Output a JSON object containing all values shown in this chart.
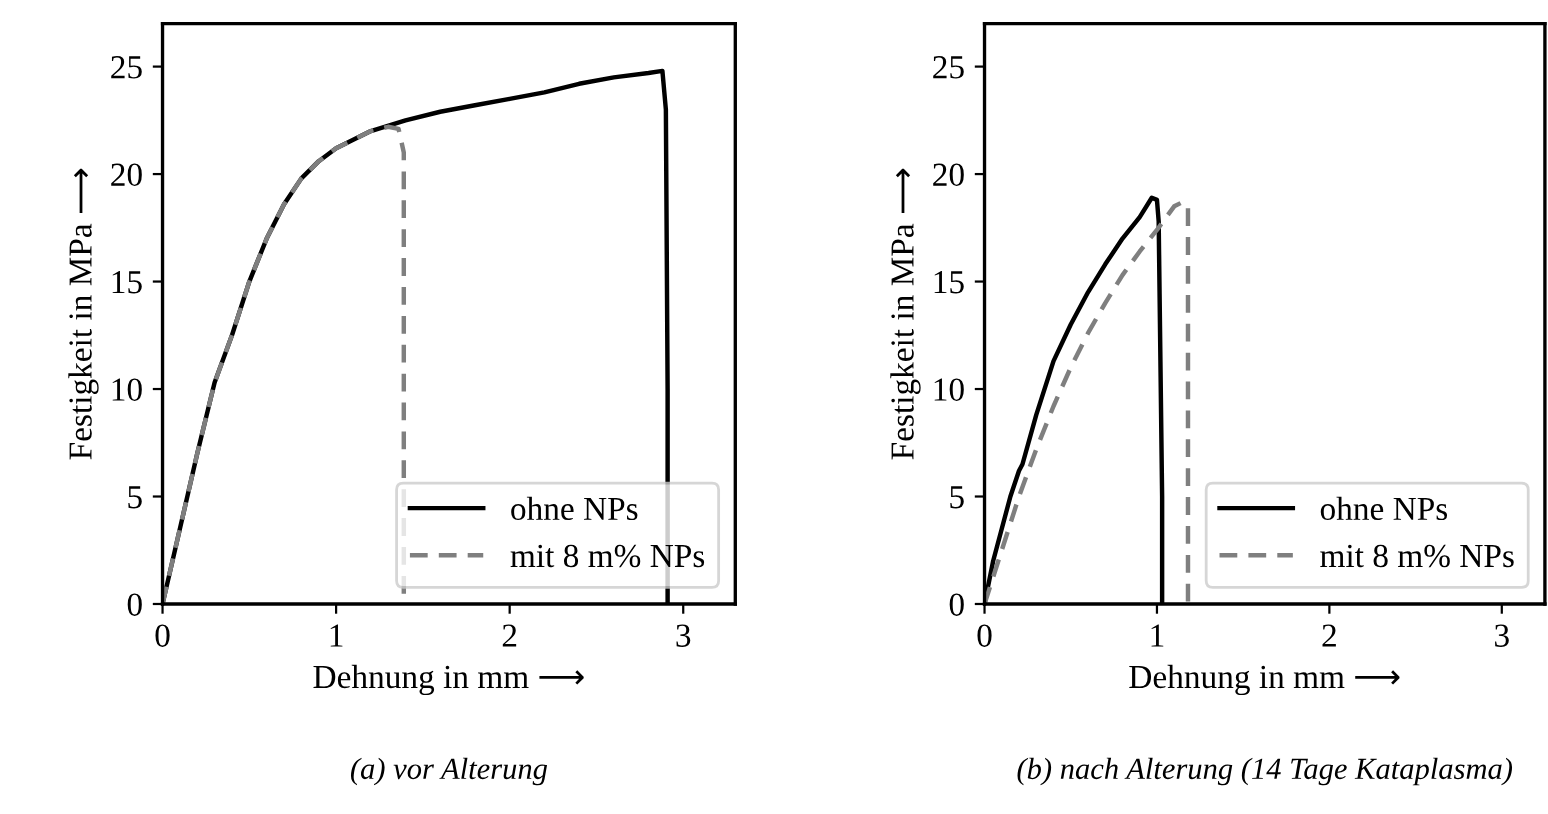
{
  "chart_data": [
    {
      "type": "line",
      "title": "(a) vor Alterung",
      "xlabel": "Dehnung in mm ⟶",
      "ylabel": "Festigkeit in MPa ⟶",
      "xlim": [
        0,
        3.3
      ],
      "ylim": [
        0,
        27
      ],
      "xticks": [
        0,
        1,
        2,
        3
      ],
      "yticks": [
        0,
        5,
        10,
        15,
        20,
        25
      ],
      "grid": false,
      "legend": "bottom right",
      "series": [
        {
          "name": "ohne NPs",
          "color": "#000000",
          "line_style": "solid",
          "x": [
            0,
            0.1,
            0.2,
            0.3,
            0.4,
            0.5,
            0.6,
            0.7,
            0.8,
            0.9,
            1.0,
            1.2,
            1.4,
            1.6,
            1.8,
            2.0,
            2.2,
            2.4,
            2.6,
            2.8,
            2.88,
            2.9,
            2.91,
            2.91
          ],
          "values": [
            0,
            3.5,
            7,
            10.3,
            12.5,
            15,
            17,
            18.6,
            19.8,
            20.6,
            21.2,
            22,
            22.5,
            22.9,
            23.2,
            23.5,
            23.8,
            24.2,
            24.5,
            24.7,
            24.8,
            23,
            10,
            0
          ]
        },
        {
          "name": "mit 8 m% NPs",
          "color": "#7f7f7f",
          "line_style": "dashed",
          "x": [
            0,
            0.1,
            0.2,
            0.3,
            0.4,
            0.5,
            0.6,
            0.7,
            0.8,
            0.9,
            1.0,
            1.2,
            1.3,
            1.36,
            1.39,
            1.39
          ],
          "values": [
            0,
            3.5,
            7,
            10.3,
            12.5,
            15,
            17,
            18.6,
            19.8,
            20.6,
            21.2,
            22,
            22.2,
            22.1,
            21,
            0
          ]
        }
      ]
    },
    {
      "type": "line",
      "title": "(b) nach Alterung (14 Tage Kataplasma)",
      "xlabel": "Dehnung in mm ⟶",
      "ylabel": "Festigkeit in MPa ⟶",
      "xlim": [
        0,
        3.25
      ],
      "ylim": [
        0,
        27
      ],
      "xticks": [
        0,
        1,
        2,
        3
      ],
      "yticks": [
        0,
        5,
        10,
        15,
        20,
        25
      ],
      "grid": false,
      "legend": "bottom right",
      "series": [
        {
          "name": "ohne NPs",
          "color": "#000000",
          "line_style": "solid",
          "x": [
            0,
            0.05,
            0.1,
            0.15,
            0.2,
            0.22,
            0.3,
            0.4,
            0.5,
            0.6,
            0.7,
            0.8,
            0.9,
            0.97,
            1.0,
            1.01,
            1.03,
            1.03
          ],
          "values": [
            0,
            2,
            3.5,
            5,
            6.2,
            6.5,
            8.8,
            11.3,
            13,
            14.5,
            15.8,
            17,
            18,
            18.9,
            18.8,
            17.8,
            5,
            0
          ]
        },
        {
          "name": "mit 8 m% NPs",
          "color": "#7f7f7f",
          "line_style": "dashed",
          "x": [
            0,
            0.1,
            0.2,
            0.3,
            0.4,
            0.5,
            0.6,
            0.7,
            0.8,
            0.9,
            1.0,
            1.1,
            1.15,
            1.18,
            1.18
          ],
          "values": [
            0,
            2.5,
            5,
            7.2,
            9.2,
            11,
            12.6,
            14,
            15.3,
            16.4,
            17.4,
            18.5,
            18.7,
            18.5,
            0
          ]
        }
      ]
    }
  ]
}
